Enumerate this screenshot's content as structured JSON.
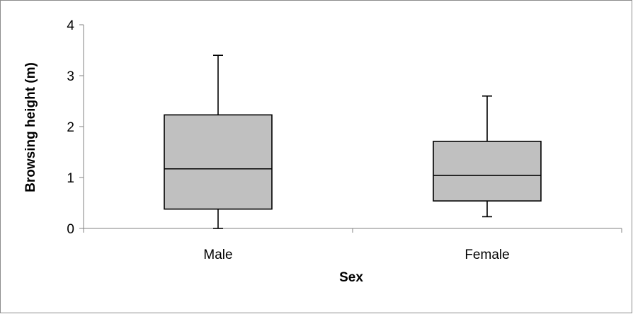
{
  "chart_data": {
    "type": "boxplot",
    "xlabel": "Sex",
    "ylabel": "Browsing height (m)",
    "categories": [
      "Male",
      "Female"
    ],
    "boxes": [
      {
        "category": "Male",
        "min": 0.0,
        "q1": 0.38,
        "median": 1.17,
        "q3": 2.23,
        "max": 3.4
      },
      {
        "category": "Female",
        "min": 0.23,
        "q1": 0.54,
        "median": 1.04,
        "q3": 1.71,
        "max": 2.6
      }
    ],
    "ylim": [
      0,
      4
    ],
    "yticks": [
      "0",
      "1",
      "2",
      "3",
      "4"
    ],
    "grid": false,
    "legend": "none",
    "colors": {
      "box_fill": "#c0c0c0",
      "stroke": "#000000",
      "axis": "#808080"
    }
  }
}
